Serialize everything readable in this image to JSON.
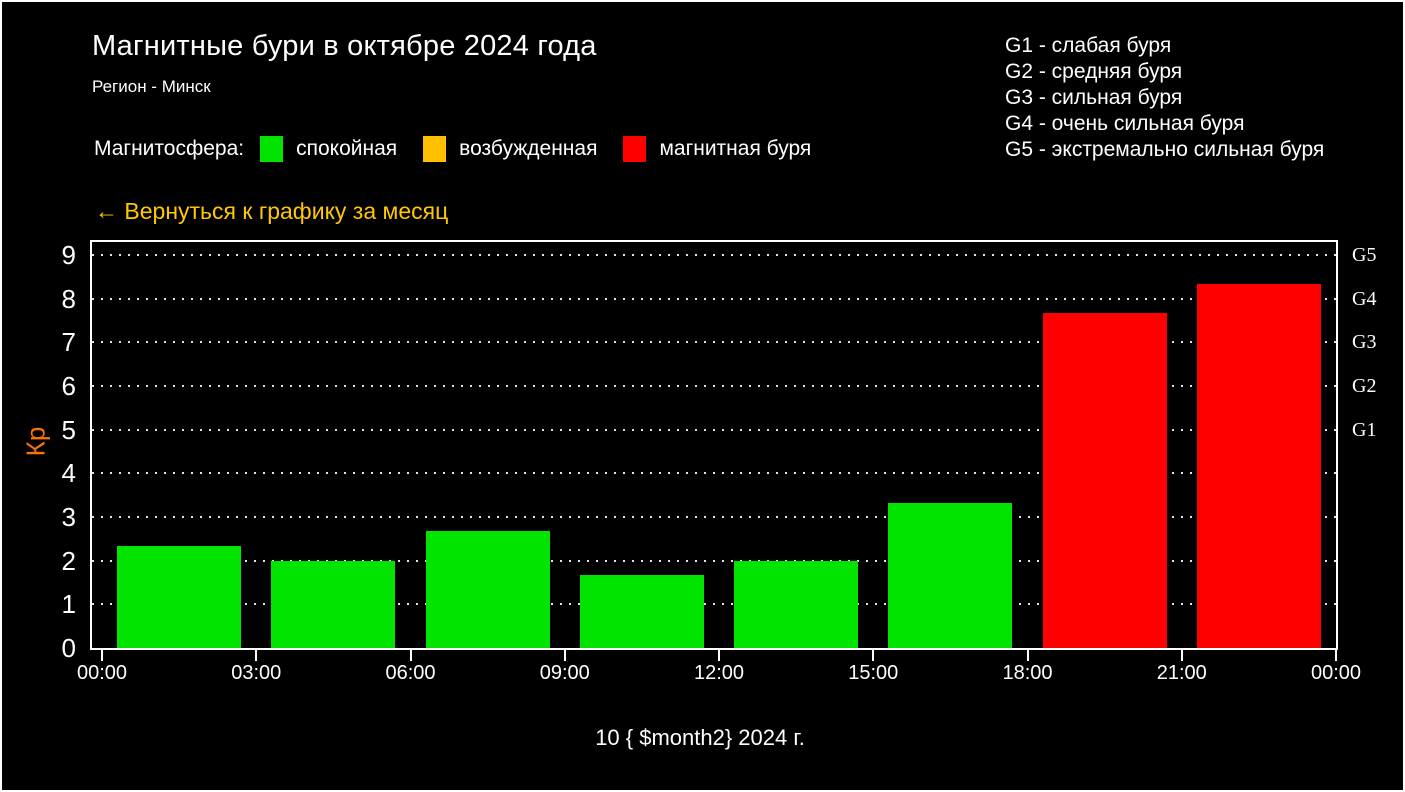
{
  "header": {
    "title": "Магнитные бури в октябре 2024 года",
    "subtitle": "Регион - Минск",
    "back_link": "← Вернуться к графику за месяц"
  },
  "magnetosphere_legend": {
    "label": "Магнитосфера:",
    "items": [
      {
        "label": "спокойная",
        "color": "#00e400"
      },
      {
        "label": "возбужденная",
        "color": "#ffc000"
      },
      {
        "label": "магнитная буря",
        "color": "#ff0000"
      }
    ]
  },
  "storm_scale_legend": {
    "items": [
      "G1 - слабая буря",
      "G2 - средняя буря",
      "G3 - сильная буря",
      "G4 - очень сильная буря",
      "G5 - экстремально сильная буря"
    ]
  },
  "chart_data": {
    "type": "bar",
    "title": "Магнитные бури в октябре 2024 года",
    "xlabel": "10 { $month2} 2024 г.",
    "ylabel": "Кр",
    "ylim": [
      0,
      9.3
    ],
    "grid": "dotted horizontal lines at each integer Kp 1-9",
    "legend_position": "top",
    "x_ticks": [
      "00:00",
      "03:00",
      "06:00",
      "09:00",
      "12:00",
      "15:00",
      "18:00",
      "21:00",
      "00:00"
    ],
    "y_ticks": [
      0,
      1,
      2,
      3,
      4,
      5,
      6,
      7,
      8,
      9
    ],
    "g_levels": [
      {
        "label": "G5",
        "kp": 9
      },
      {
        "label": "G4",
        "kp": 8
      },
      {
        "label": "G3",
        "kp": 7
      },
      {
        "label": "G2",
        "kp": 6
      },
      {
        "label": "G1",
        "kp": 5
      }
    ],
    "bars": [
      {
        "interval": "00:00-03:00",
        "kp": 2.33,
        "status": "спокойная",
        "color": "#00e400"
      },
      {
        "interval": "03:00-06:00",
        "kp": 2.0,
        "status": "спокойная",
        "color": "#00e400"
      },
      {
        "interval": "06:00-09:00",
        "kp": 2.67,
        "status": "спокойная",
        "color": "#00e400"
      },
      {
        "interval": "09:00-12:00",
        "kp": 1.67,
        "status": "спокойная",
        "color": "#00e400"
      },
      {
        "interval": "12:00-15:00",
        "kp": 2.0,
        "status": "спокойная",
        "color": "#00e400"
      },
      {
        "interval": "15:00-18:00",
        "kp": 3.33,
        "status": "спокойная",
        "color": "#00e400"
      },
      {
        "interval": "18:00-21:00",
        "kp": 7.67,
        "status": "магнитная буря",
        "color": "#ff0000"
      },
      {
        "interval": "21:00-00:00",
        "kp": 8.33,
        "status": "магнитная буря",
        "color": "#ff0000"
      }
    ],
    "colors": {
      "background": "#000000",
      "axis": "#ffffff",
      "grid_dots": "#e2e2e2",
      "ylabel": "#ff7300",
      "back_link": "#ffc800"
    }
  }
}
